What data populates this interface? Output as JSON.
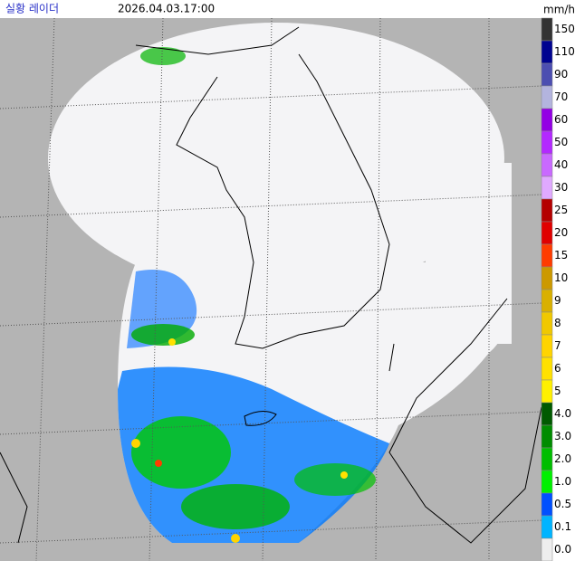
{
  "header": {
    "title": "실황 레이더",
    "time": "2026.04.03.17:00",
    "unit": "mm/h"
  },
  "legend": [
    {
      "label": "150",
      "color": "#333333"
    },
    {
      "label": "110",
      "color": "#000390"
    },
    {
      "label": "90",
      "color": "#4c4eb1"
    },
    {
      "label": "70",
      "color": "#b3b4de"
    },
    {
      "label": "60",
      "color": "#9300e4"
    },
    {
      "label": "50",
      "color": "#b329ff"
    },
    {
      "label": "40",
      "color": "#c969ff"
    },
    {
      "label": "30",
      "color": "#e0a9ff"
    },
    {
      "label": "25",
      "color": "#b40000"
    },
    {
      "label": "20",
      "color": "#e00000"
    },
    {
      "label": "15",
      "color": "#ff3c00"
    },
    {
      "label": "10",
      "color": "#cc9900"
    },
    {
      "label": "9",
      "color": "#d9b000"
    },
    {
      "label": "8",
      "color": "#f0c800"
    },
    {
      "label": "7",
      "color": "#ffd400"
    },
    {
      "label": "6",
      "color": "#ffe100"
    },
    {
      "label": "5",
      "color": "#fff000"
    },
    {
      "label": "4.0",
      "color": "#005a00"
    },
    {
      "label": "3.0",
      "color": "#008c00"
    },
    {
      "label": "2.0",
      "color": "#00be00"
    },
    {
      "label": "1.0",
      "color": "#00f000"
    },
    {
      "label": "0.5",
      "color": "#0050ff"
    },
    {
      "label": "0.1",
      "color": "#00b4ff"
    },
    {
      "label": "0.0",
      "color": "#eeeeee"
    }
  ]
}
